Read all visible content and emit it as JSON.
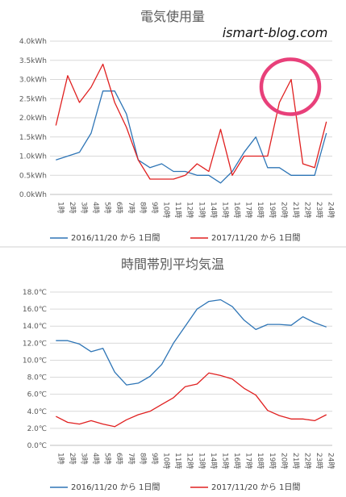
{
  "chart_data": [
    {
      "type": "line",
      "title": "電気使用量",
      "categories": [
        "1時",
        "2時",
        "3時",
        "4時",
        "5時",
        "6時",
        "7時",
        "8時",
        "9時",
        "10時",
        "11時",
        "12時",
        "13時",
        "14時",
        "15時",
        "16時",
        "17時",
        "18時",
        "19時",
        "20時",
        "21時",
        "22時",
        "23時",
        "24時"
      ],
      "yticks": [
        "0.0kWh",
        "0.5kWh",
        "1.0kWh",
        "1.5kWh",
        "2.0kWh",
        "2.5kWh",
        "3.0kWh",
        "3.5kWh",
        "4.0kWh"
      ],
      "ylim": [
        0,
        4.0
      ],
      "grid": true,
      "legend_position": "bottom",
      "series": [
        {
          "name": "2016/11/20 から 1日間",
          "color": "#2e75b6",
          "values": [
            0.9,
            1.0,
            1.1,
            1.6,
            2.7,
            2.7,
            2.1,
            0.9,
            0.7,
            0.8,
            0.6,
            0.6,
            0.5,
            0.5,
            0.3,
            0.6,
            1.1,
            1.5,
            0.7,
            0.7,
            0.5,
            0.5,
            0.5,
            1.6
          ]
        },
        {
          "name": "2017/11/20 から 1日間",
          "color": "#e02020",
          "values": [
            1.8,
            3.1,
            2.4,
            2.8,
            3.4,
            2.4,
            1.75,
            0.9,
            0.4,
            0.4,
            0.4,
            0.5,
            0.8,
            0.6,
            1.7,
            0.5,
            1.0,
            1.0,
            1.0,
            2.4,
            3.0,
            0.8,
            0.7,
            1.9
          ]
        }
      ],
      "annotation": {
        "type": "circle",
        "color": "#e8407a",
        "around_category": "21時"
      }
    },
    {
      "type": "line",
      "title": "時間帯別平均気温",
      "categories": [
        "1時",
        "2時",
        "3時",
        "4時",
        "5時",
        "6時",
        "7時",
        "8時",
        "9時",
        "10時",
        "11時",
        "12時",
        "13時",
        "14時",
        "15時",
        "16時",
        "17時",
        "18時",
        "19時",
        "20時",
        "21時",
        "22時",
        "23時",
        "24時"
      ],
      "yticks": [
        "0.0℃",
        "2.0℃",
        "4.0℃",
        "6.0℃",
        "8.0℃",
        "10.0℃",
        "12.0℃",
        "14.0℃",
        "16.0℃",
        "18.0℃"
      ],
      "ylim": [
        0,
        18.0
      ],
      "grid": true,
      "legend_position": "bottom",
      "series": [
        {
          "name": "2016/11/20 から 1日間",
          "color": "#2e75b6",
          "values": [
            12.3,
            12.3,
            11.9,
            11.0,
            11.4,
            8.6,
            7.1,
            7.3,
            8.1,
            9.5,
            12.0,
            14.0,
            16.0,
            16.9,
            17.1,
            16.3,
            14.7,
            13.6,
            14.2,
            14.2,
            14.1,
            15.1,
            14.4,
            13.9
          ]
        },
        {
          "name": "2017/11/20 から 1日間",
          "color": "#e02020",
          "values": [
            3.4,
            2.7,
            2.5,
            2.9,
            2.5,
            2.2,
            3.0,
            3.6,
            4.0,
            4.8,
            5.6,
            6.9,
            7.2,
            8.5,
            8.2,
            7.8,
            6.7,
            5.9,
            4.1,
            3.5,
            3.1,
            3.1,
            2.9,
            3.6
          ]
        }
      ]
    }
  ],
  "watermark": "ismart-blog.com"
}
